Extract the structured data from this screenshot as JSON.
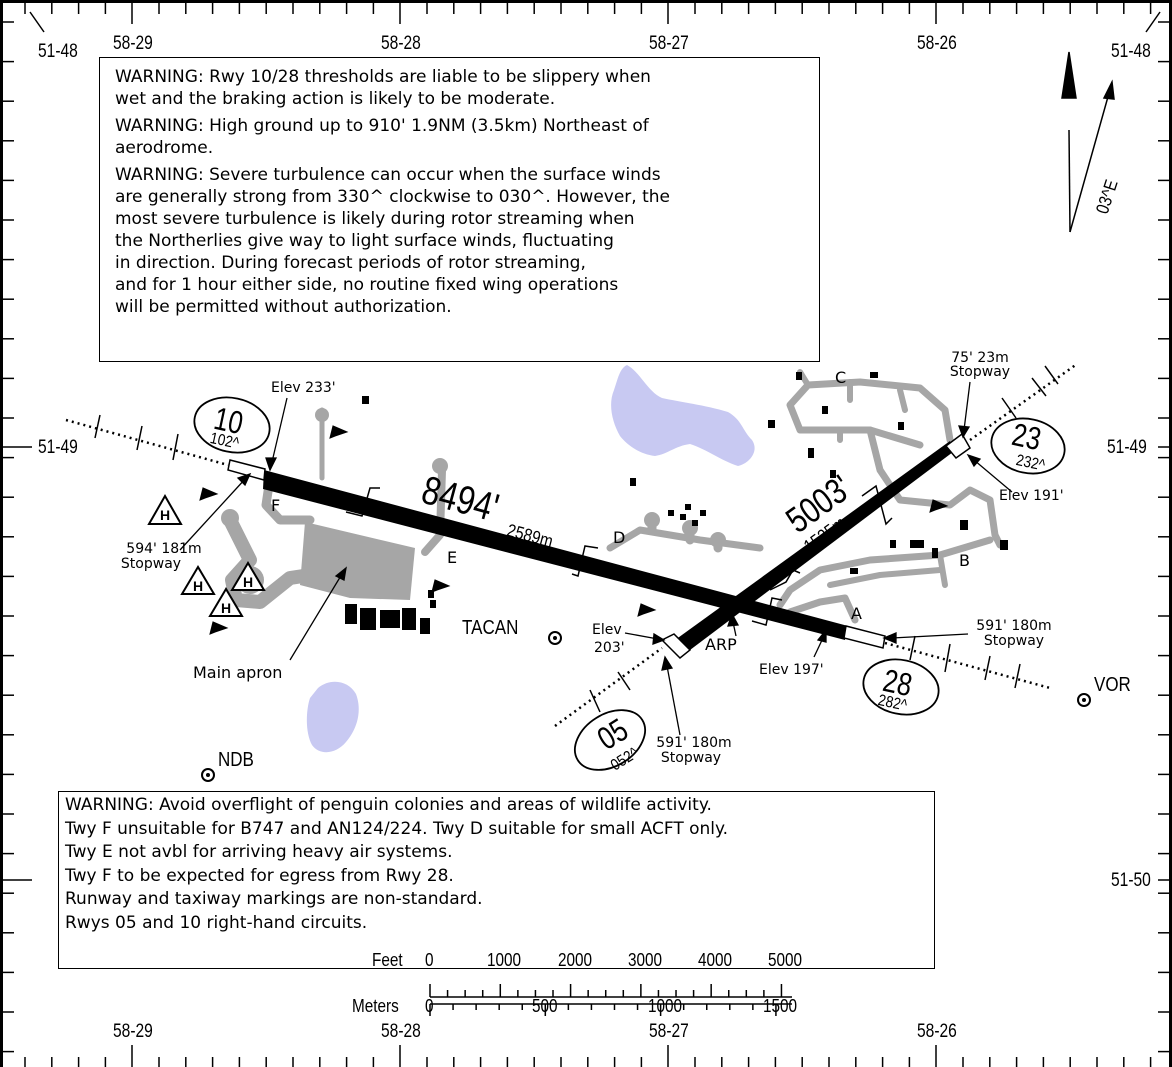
{
  "grid": {
    "longitudes": [
      "58-29",
      "58-28",
      "58-27",
      "58-26"
    ],
    "latitudes": [
      "51-48",
      "51-49",
      "51-50"
    ]
  },
  "warnings_top": [
    "WARNING: Rwy 10/28 thresholds are liable to be slippery when",
    "wet and the braking action is likely to be moderate.",
    "WARNING: High ground up to 910' 1.9NM (3.5km) Northeast of",
    "aerodrome.",
    "WARNING: Severe turbulence can occur when the surface winds",
    "are generally strong from 330^ clockwise to 030^. However, the",
    "most severe turbulence is likely during rotor streaming when",
    "the Northerlies give way to light surface winds, fluctuating",
    "in direction. During forecast periods of rotor streaming,",
    "and for 1 hour either side, no routine fixed wing operations",
    "will be permitted without authorization."
  ],
  "warnings_bottom": [
    "WARNING: Avoid overflight of penguin colonies and areas of wildlife activity.",
    "Twy F unsuitable for B747 and AN124/224. Twy D suitable for small ACFT only.",
    "Twy E not avbl for arriving heavy air systems.",
    "Twy F to be expected for egress from Rwy 28.",
    "Runway and taxiway markings are non-standard.",
    "Rwys 05 and 10 right-hand circuits."
  ],
  "magvar": "03^E",
  "runways": {
    "r10_28": {
      "length_ft": "8494'",
      "length_m": "2589m"
    },
    "r05_23": {
      "length_ft": "5003'",
      "length_m": "1525m"
    }
  },
  "runway_ends": [
    {
      "id": "10",
      "heading": "102^"
    },
    {
      "id": "28",
      "heading": "282^"
    },
    {
      "id": "05",
      "heading": "052^"
    },
    {
      "id": "23",
      "heading": "232^"
    }
  ],
  "elevations": {
    "rwy10": "Elev 233'",
    "rwy23": "Elev 191'",
    "rwy28": "Elev 197'",
    "rwy05_top": "Elev",
    "rwy05_bottom": "203'"
  },
  "stopways": {
    "rwy10": {
      "size": "594' 181m",
      "label": "Stopway"
    },
    "rwy23": {
      "size": "75' 23m",
      "label": "Stopway"
    },
    "rwy28": {
      "size": "591' 180m",
      "label": "Stopway"
    },
    "rwy05": {
      "size": "591' 180m",
      "label": "Stopway"
    }
  },
  "taxiways": [
    "A",
    "B",
    "C",
    "D",
    "E",
    "F"
  ],
  "labels": {
    "main_apron": "Main apron",
    "arp": "ARP"
  },
  "navaids": [
    "TACAN",
    "VOR",
    "NDB"
  ],
  "scale": {
    "feet_label": "Feet",
    "feet_ticks": [
      "0",
      "1000",
      "2000",
      "3000",
      "4000",
      "5000"
    ],
    "meters_label": "Meters",
    "meters_ticks": [
      "0",
      "500",
      "1000",
      "1500"
    ]
  },
  "colors": {
    "runway": "#000000",
    "taxiway": "#a6a6a6",
    "water": "#c8c9f2"
  }
}
